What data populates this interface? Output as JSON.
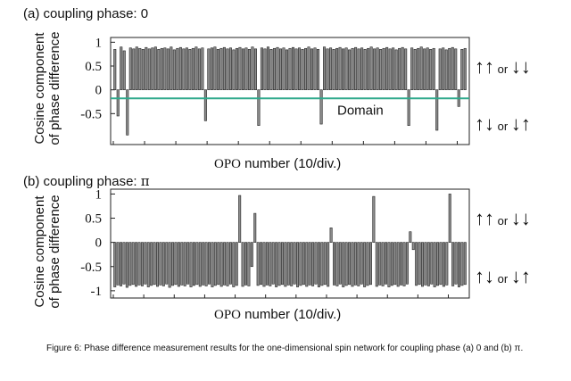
{
  "panels": {
    "a": {
      "title_prefix": "(a) coupling phase: ",
      "title_value": "0",
      "ylabel_line1": "Cosine component",
      "ylabel_line2": "of phase difference",
      "xlabel_prefix": "OPO",
      "xlabel_suffix": " number (10/div.)",
      "domain_label": "Domain",
      "domain_color": "#2fa98c",
      "spin_top": {
        "arrows_left": "↑↑",
        "or": "or",
        "arrows_right": "↓↓"
      },
      "spin_bottom": {
        "arrows_left": "↑↓",
        "or": "or",
        "arrows_right": "↓↑"
      }
    },
    "b": {
      "title_prefix": "(b) coupling phase: ",
      "title_value": "π",
      "ylabel_line1": "Cosine component",
      "ylabel_line2": "of phase difference",
      "xlabel_prefix": "OPO",
      "xlabel_suffix": " number (10/div.)",
      "spin_top": {
        "arrows_left": "↑↑",
        "or": "or",
        "arrows_right": "↓↓"
      },
      "spin_bottom": {
        "arrows_left": "↑↓",
        "or": "or",
        "arrows_right": "↓↑"
      }
    }
  },
  "caption": "Figure 6: Phase difference measurement results for the one-dimensional spin network for  coupling phase (a) 0 and (b) π.",
  "chart_data": [
    {
      "type": "bar",
      "title": "(a) coupling phase: 0",
      "xlabel": "OPO number (10/div.)",
      "ylabel": "Cosine component of phase difference",
      "ylim": [
        -1.15,
        1.1
      ],
      "yticks": [
        "1",
        "0.5",
        "0",
        "-0.5"
      ],
      "bar_color": "#8c8c8c",
      "domain_line_y": -0.18,
      "annotation": "Domain",
      "values": [
        0.85,
        -0.55,
        0.9,
        0.82,
        -0.95,
        0.88,
        0.86,
        0.9,
        0.87,
        0.85,
        0.89,
        0.86,
        0.88,
        0.9,
        0.85,
        0.87,
        0.88,
        0.86,
        0.9,
        0.84,
        0.87,
        0.89,
        0.86,
        0.88,
        0.85,
        0.87,
        0.9,
        0.86,
        0.88,
        -0.65,
        0.86,
        0.88,
        0.9,
        0.85,
        0.87,
        0.89,
        0.86,
        0.88,
        0.84,
        0.87,
        0.89,
        0.86,
        0.88,
        0.85,
        0.9,
        0.86,
        -0.75,
        0.88,
        0.86,
        0.9,
        0.85,
        0.87,
        0.89,
        0.86,
        0.88,
        0.84,
        0.87,
        0.89,
        0.86,
        0.88,
        0.85,
        0.87,
        0.9,
        0.86,
        0.88,
        0.85,
        -0.72,
        0.9,
        0.86,
        0.88,
        0.85,
        0.87,
        0.89,
        0.86,
        0.88,
        0.84,
        0.87,
        0.89,
        0.86,
        0.88,
        0.85,
        0.87,
        0.9,
        0.86,
        0.88,
        0.85,
        0.87,
        0.89,
        0.86,
        0.88,
        0.84,
        0.87,
        0.89,
        0.86,
        -0.75,
        0.88,
        0.85,
        0.87,
        0.9,
        0.86,
        0.88,
        0.85,
        0.87,
        -0.85,
        0.86,
        0.88,
        0.84,
        0.87,
        0.89,
        0.86,
        -0.35,
        0.85,
        0.87
      ]
    },
    {
      "type": "bar",
      "title": "(b) coupling phase: π",
      "xlabel": "OPO number (10/div.)",
      "ylabel": "Cosine component of phase difference",
      "ylim": [
        -1.15,
        1.1
      ],
      "yticks": [
        "1",
        "0.5",
        "0",
        "-0.5",
        "-1"
      ],
      "bar_color": "#8c8c8c",
      "values": [
        -0.92,
        -0.88,
        -0.9,
        -0.86,
        -0.93,
        -0.89,
        -0.87,
        -0.91,
        -0.88,
        -0.9,
        -0.86,
        -0.92,
        -0.89,
        -0.87,
        -0.91,
        -0.88,
        -0.9,
        -0.86,
        -0.93,
        -0.89,
        -0.87,
        -0.91,
        -0.88,
        -0.9,
        -0.86,
        -0.92,
        -0.89,
        -0.87,
        -0.91,
        -0.88,
        -0.9,
        -0.86,
        -0.92,
        -0.89,
        -0.87,
        -0.91,
        -0.88,
        -0.9,
        -0.86,
        -0.92,
        -0.89,
        0.97,
        -0.91,
        -0.88,
        -0.9,
        -0.5,
        0.6,
        -0.89,
        -0.87,
        -0.91,
        -0.88,
        -0.9,
        -0.86,
        -0.92,
        -0.89,
        -0.87,
        -0.91,
        -0.88,
        -0.9,
        -0.86,
        -0.92,
        -0.89,
        -0.87,
        -0.91,
        -0.88,
        -0.9,
        -0.86,
        -0.92,
        -0.89,
        -0.87,
        -0.91,
        0.3,
        -0.88,
        -0.9,
        -0.86,
        -0.92,
        -0.89,
        -0.87,
        -0.91,
        -0.88,
        -0.9,
        -0.86,
        -0.92,
        -0.89,
        -0.87,
        0.95,
        -0.91,
        -0.88,
        -0.9,
        -0.86,
        -0.92,
        -0.89,
        -0.87,
        -0.91,
        -0.88,
        -0.9,
        -0.86,
        0.22,
        -0.15,
        -0.89,
        -0.87,
        -0.91,
        -0.88,
        -0.9,
        -0.86,
        -0.92,
        -0.89,
        -0.87,
        -0.91,
        -0.88,
        1.0,
        -0.9,
        -0.86,
        -0.92,
        -0.89,
        -0.87
      ]
    }
  ]
}
